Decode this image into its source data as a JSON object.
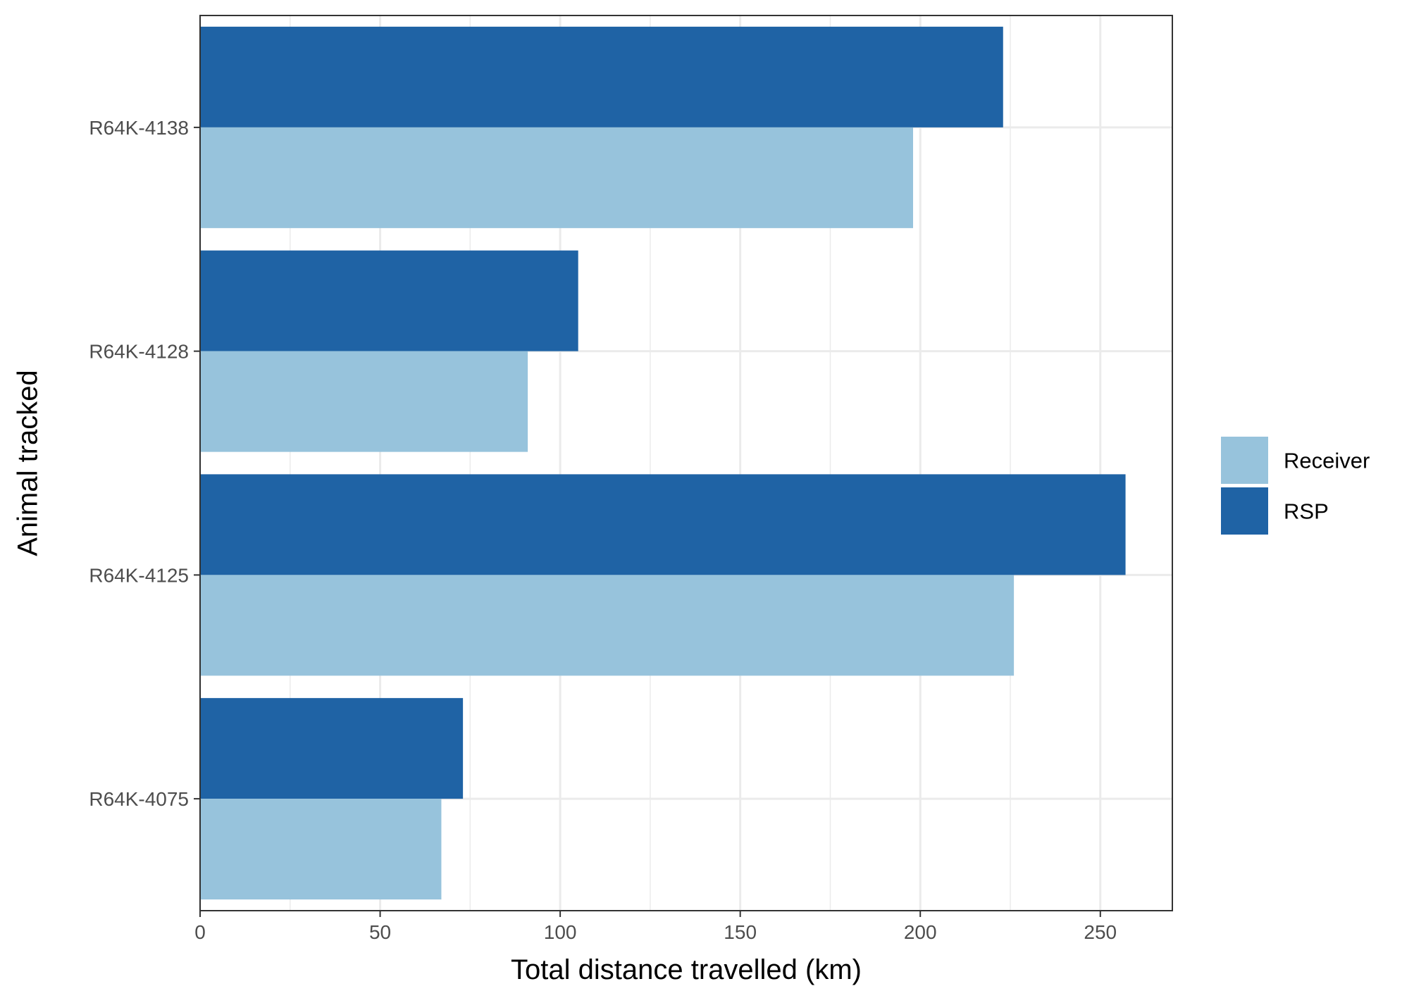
{
  "chart_data": {
    "type": "bar",
    "orientation": "horizontal",
    "categories": [
      "R64K-4138",
      "R64K-4128",
      "R64K-4125",
      "R64K-4075"
    ],
    "series": [
      {
        "name": "Receiver",
        "color": "#97c3dc",
        "values": [
          198,
          91,
          226,
          67
        ]
      },
      {
        "name": "RSP",
        "color": "#1f63a5",
        "values": [
          223,
          105,
          257,
          73
        ]
      }
    ],
    "xlabel": "Total distance travelled (km)",
    "ylabel": "Animal tracked",
    "xlim": [
      0,
      270
    ],
    "xticks": [
      0,
      50,
      100,
      150,
      200,
      250
    ],
    "grid": true,
    "legend_position": "right"
  }
}
